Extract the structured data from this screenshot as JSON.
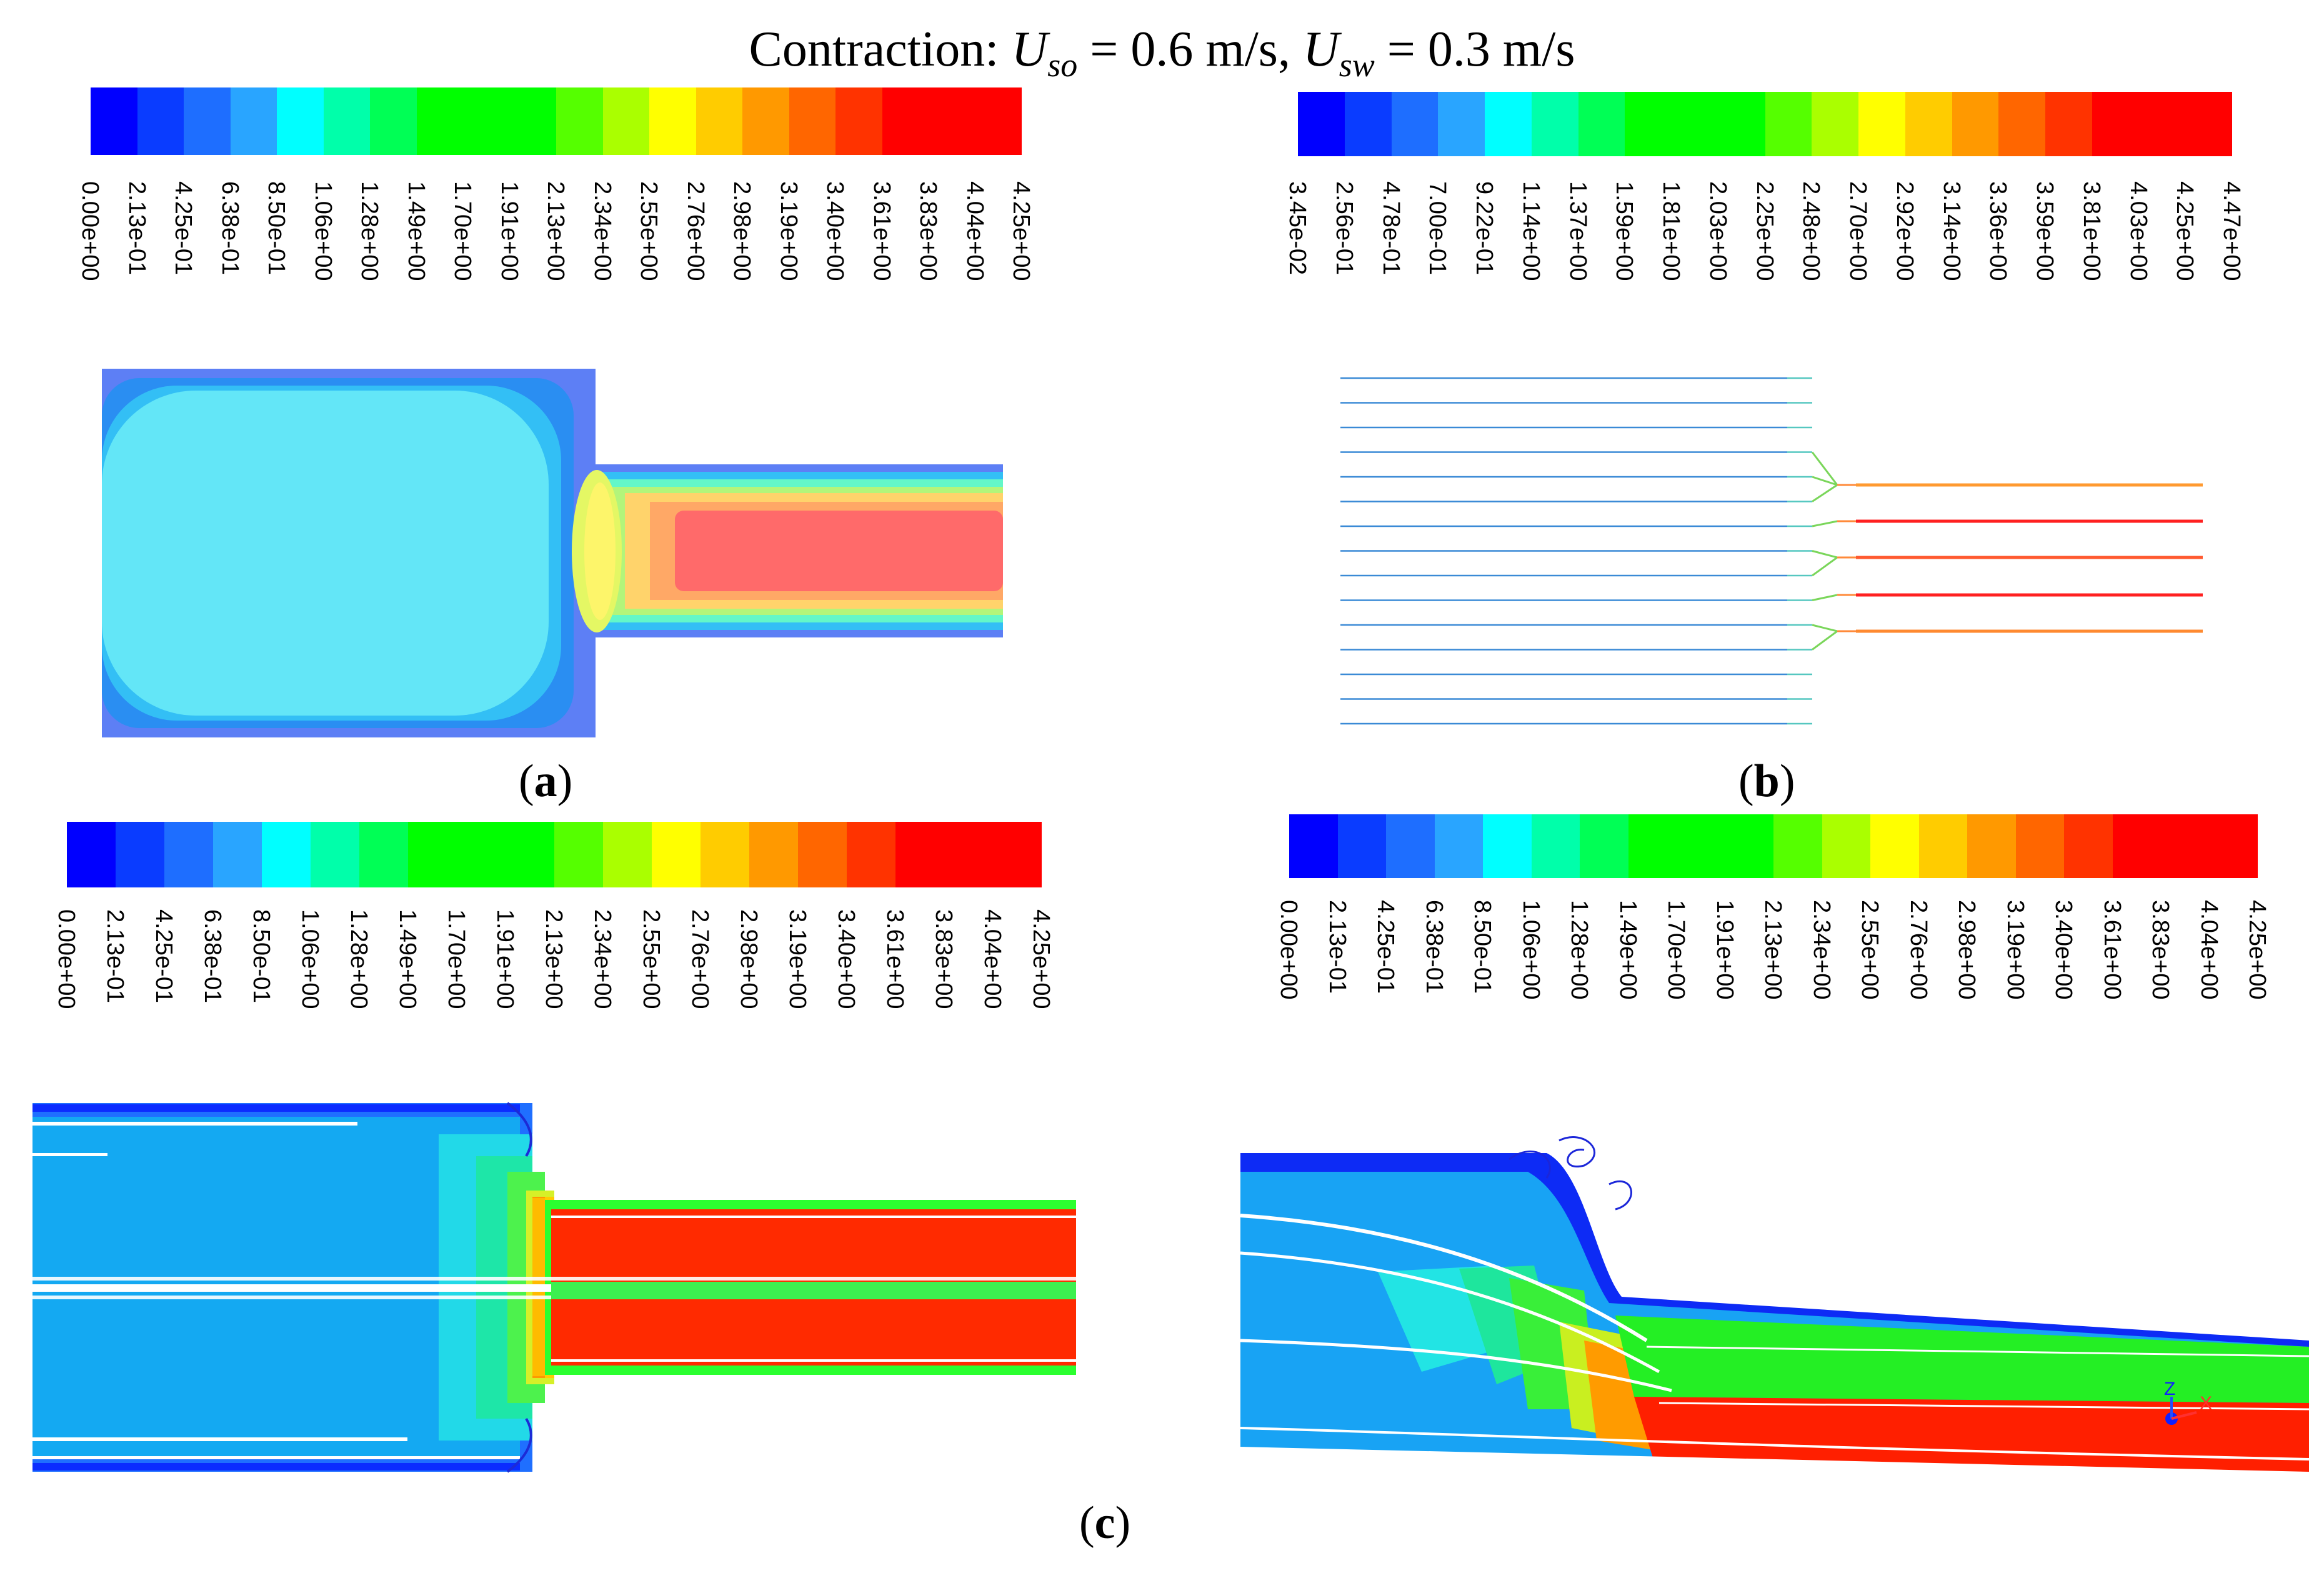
{
  "figure": {
    "title_prefix": "Contraction: ",
    "u_so_symbol": "U",
    "u_so_sub": "so",
    "u_so_value": " = 0.6 m/s, ",
    "u_sw_symbol": "U",
    "u_sw_sub": "sw",
    "u_sw_value": " = 0.3 m/s"
  },
  "captions": {
    "a": "a",
    "b": "b",
    "c": "c"
  },
  "colormap": [
    "#0000ff",
    "#0a3cff",
    "#1e6eff",
    "#29a5ff",
    "#00ffff",
    "#00ffaa",
    "#00ff55",
    "#00ff00",
    "#00ff00",
    "#00ff00",
    "#55ff00",
    "#aaff00",
    "#ffff00",
    "#ffcc00",
    "#ff9900",
    "#ff6600",
    "#ff3300",
    "#ff0000",
    "#ff0000",
    "#ff0000"
  ],
  "colorbars": {
    "a": {
      "labels": [
        "0.00e+00",
        "2.13e-01",
        "4.25e-01",
        "6.38e-01",
        "8.50e-01",
        "1.06e+00",
        "1.28e+00",
        "1.49e+00",
        "1.70e+00",
        "1.91e+00",
        "2.13e+00",
        "2.34e+00",
        "2.55e+00",
        "2.76e+00",
        "2.98e+00",
        "3.19e+00",
        "3.40e+00",
        "3.61e+00",
        "3.83e+00",
        "4.04e+00",
        "4.25e+00"
      ]
    },
    "b": {
      "labels": [
        "3.45e-02",
        "2.56e-01",
        "4.78e-01",
        "7.00e-01",
        "9.22e-01",
        "1.14e+00",
        "1.37e+00",
        "1.59e+00",
        "1.81e+00",
        "2.03e+00",
        "2.25e+00",
        "2.48e+00",
        "2.70e+00",
        "2.92e+00",
        "3.14e+00",
        "3.36e+00",
        "3.59e+00",
        "3.81e+00",
        "4.03e+00",
        "4.25e+00",
        "4.47e+00"
      ]
    },
    "c_left": {
      "labels": [
        "0.00e+00",
        "2.13e-01",
        "4.25e-01",
        "6.38e-01",
        "8.50e-01",
        "1.06e+00",
        "1.28e+00",
        "1.49e+00",
        "1.70e+00",
        "1.91e+00",
        "2.13e+00",
        "2.34e+00",
        "2.55e+00",
        "2.76e+00",
        "2.98e+00",
        "3.19e+00",
        "3.40e+00",
        "3.61e+00",
        "3.83e+00",
        "4.04e+00",
        "4.25e+00"
      ]
    },
    "c_right": {
      "labels": [
        "0.00e+00",
        "2.13e-01",
        "4.25e-01",
        "6.38e-01",
        "8.50e-01",
        "1.06e+00",
        "1.28e+00",
        "1.49e+00",
        "1.70e+00",
        "1.91e+00",
        "2.13e+00",
        "2.34e+00",
        "2.55e+00",
        "2.76e+00",
        "2.98e+00",
        "3.19e+00",
        "3.40e+00",
        "3.61e+00",
        "3.83e+00",
        "4.04e+00",
        "4.25e+00"
      ]
    }
  },
  "axis_triad": {
    "z": "Z",
    "x": "X"
  }
}
